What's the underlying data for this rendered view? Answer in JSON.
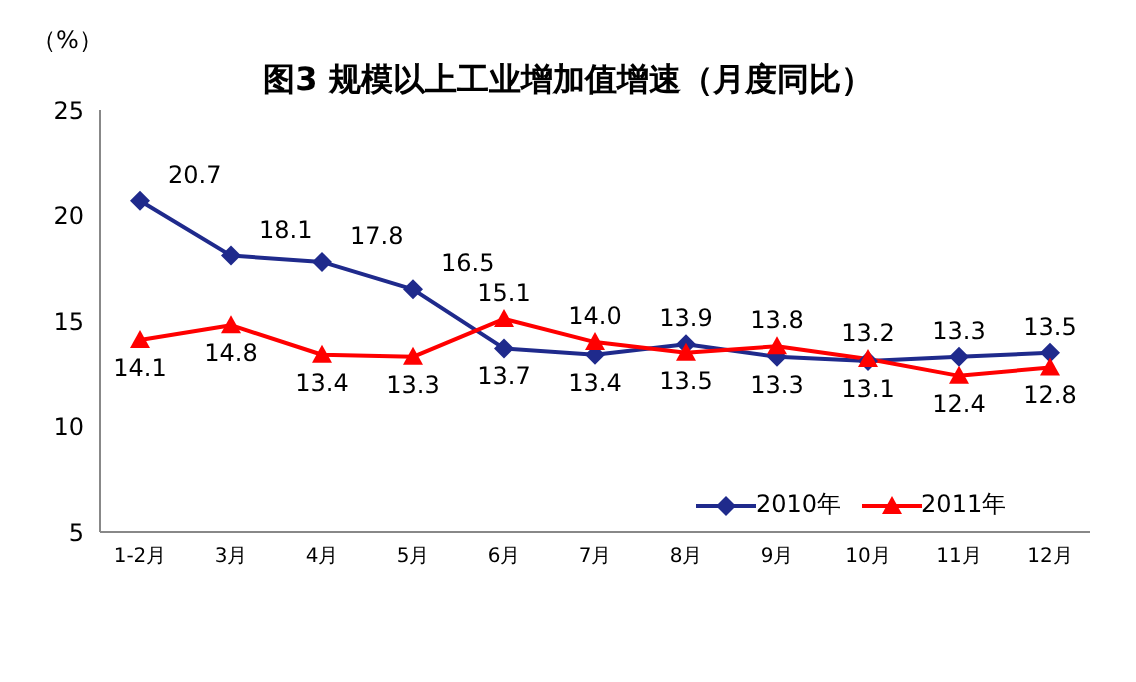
{
  "chart_data": {
    "type": "line",
    "title": "图3 规模以上工业增加值增速（月度同比）",
    "ylabel": "（%）",
    "categories": [
      "1-2月",
      "3月",
      "4月",
      "5月",
      "6月",
      "7月",
      "8月",
      "9月",
      "10月",
      "11月",
      "12月"
    ],
    "series": [
      {
        "name": "2010年",
        "color": "#1f2a8c",
        "marker": "diamond",
        "values": [
          20.7,
          18.1,
          17.8,
          16.5,
          13.7,
          13.4,
          13.9,
          13.3,
          13.1,
          13.3,
          13.5
        ],
        "value_labels": [
          "20.7",
          "18.1",
          "17.8",
          "16.5",
          "13.7",
          "13.4",
          "13.9",
          "13.3",
          "13.1",
          "13.3",
          "13.5"
        ]
      },
      {
        "name": "2011年",
        "color": "#ff0000",
        "marker": "triangle",
        "values": [
          14.1,
          14.8,
          13.4,
          13.3,
          15.1,
          14.0,
          13.5,
          13.8,
          13.2,
          12.4,
          12.8
        ],
        "value_labels": [
          "14.1",
          "14.8",
          "13.4",
          "13.3",
          "15.1",
          "14.0",
          "13.5",
          "13.8",
          "13.2",
          "12.4",
          "12.8"
        ]
      }
    ],
    "ylim": [
      5,
      25
    ],
    "yticks": [
      5,
      10,
      15,
      20,
      25
    ],
    "grid": false,
    "legend": "bottom right",
    "line_style": "solid"
  }
}
